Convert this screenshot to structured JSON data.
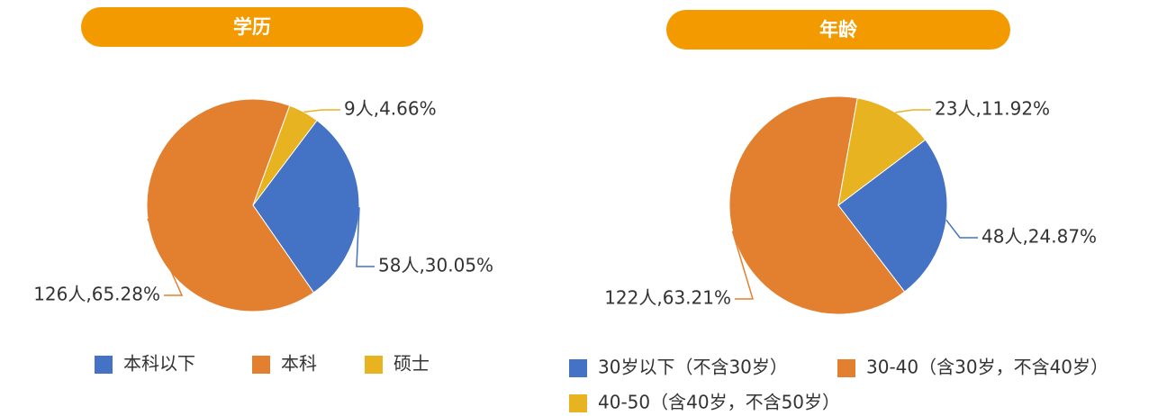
{
  "chart_data": [
    {
      "type": "pie",
      "title": "学历",
      "categories": [
        "本科以下",
        "本科",
        "硕士"
      ],
      "values": [
        58,
        126,
        9
      ],
      "value_labels": [
        "58人,30.05%",
        "126人,65.28%",
        "9人,4.66%"
      ],
      "colors": [
        "#4472c4",
        "#e3802f",
        "#e8b320"
      ],
      "legend": "bottom"
    },
    {
      "type": "pie",
      "title": "年龄",
      "categories": [
        "30岁以下（不含30岁）",
        "30-40（含30岁，不含40岁）",
        "40-50（含40岁，不含50岁）"
      ],
      "values": [
        48,
        122,
        23
      ],
      "value_labels": [
        "48人,24.87%",
        "122人,63.21%",
        "23人,11.92%"
      ],
      "colors": [
        "#4472c4",
        "#e3802f",
        "#e8b320"
      ],
      "legend": "bottom"
    }
  ]
}
